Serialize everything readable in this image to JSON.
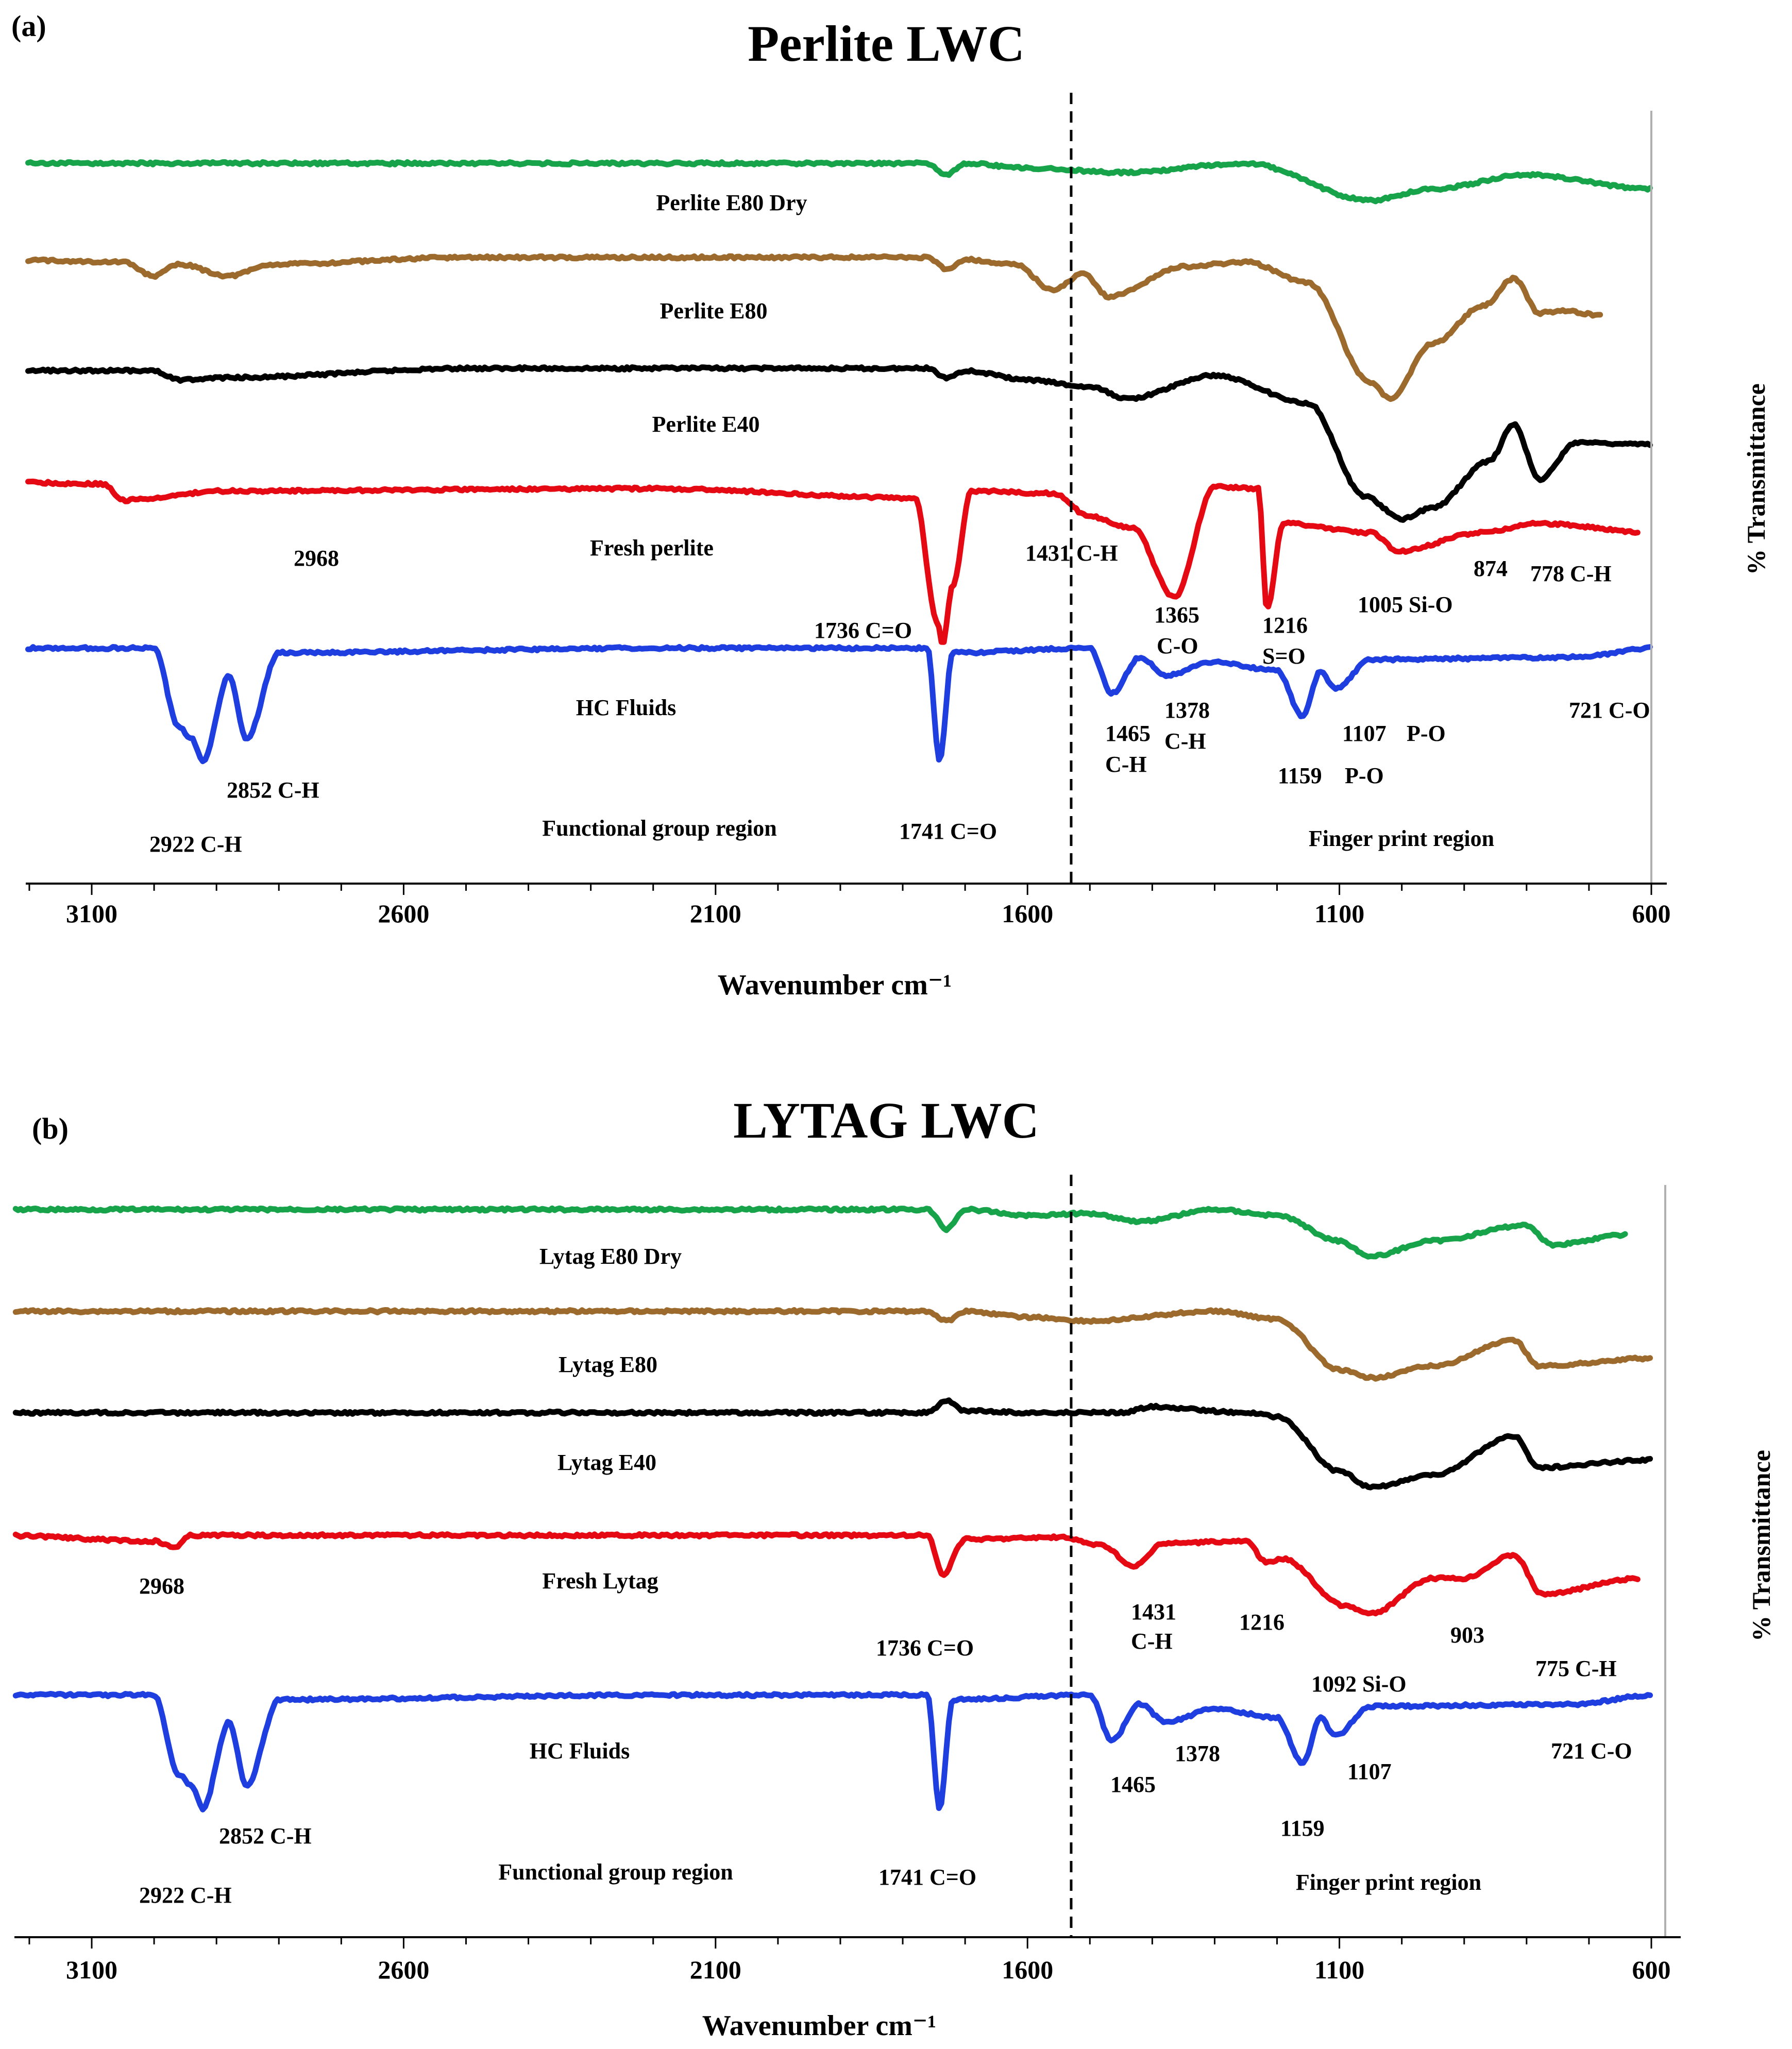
{
  "chart_data": [
    {
      "type": "line",
      "panel_label": "(a)",
      "title": "Perlite LWC",
      "xlabel": "Wavenumber cm⁻¹",
      "ylabel": "% Transmittance",
      "xlim": [
        3250,
        600
      ],
      "x_reversed": true,
      "xticks": [
        "3100",
        "2600",
        "2100",
        "1600",
        "1100",
        "600"
      ],
      "xtick_values": [
        3100,
        2600,
        2100,
        1600,
        1100,
        600
      ],
      "divider_wavenumber": 1530,
      "region_labels": [
        "Functional group region",
        "Finger print region"
      ],
      "series": [
        {
          "name": "Perlite E80 Dry",
          "color": "#17a34a",
          "x_end": 600,
          "points": [
            [
              3250,
              0.02
            ],
            [
              1760,
              0.02
            ],
            [
              1730,
              0.07
            ],
            [
              1700,
              0.02
            ],
            [
              1600,
              0.04
            ],
            [
              1450,
              0.06
            ],
            [
              1250,
              0.02
            ],
            [
              1050,
              0.18
            ],
            [
              950,
              0.13
            ],
            [
              800,
              0.07
            ],
            [
              600,
              0.13
            ]
          ]
        },
        {
          "name": "Perlite E80",
          "color": "#9c6a2c",
          "x_end": 680,
          "points": [
            [
              3250,
              0.02
            ],
            [
              3050,
              0.03
            ],
            [
              3000,
              0.09
            ],
            [
              2960,
              0.04
            ],
            [
              2880,
              0.09
            ],
            [
              2810,
              0.04
            ],
            [
              2500,
              0.01
            ],
            [
              1760,
              0.01
            ],
            [
              1730,
              0.06
            ],
            [
              1700,
              0.02
            ],
            [
              1620,
              0.04
            ],
            [
              1560,
              0.15
            ],
            [
              1510,
              0.08
            ],
            [
              1470,
              0.18
            ],
            [
              1350,
              0.05
            ],
            [
              1250,
              0.03
            ],
            [
              1150,
              0.12
            ],
            [
              1050,
              0.55
            ],
            [
              1020,
              0.62
            ],
            [
              950,
              0.38
            ],
            [
              870,
              0.22
            ],
            [
              820,
              0.1
            ],
            [
              780,
              0.25
            ],
            [
              740,
              0.24
            ],
            [
              680,
              0.26
            ]
          ]
        },
        {
          "name": "Perlite E40",
          "color": "#000000",
          "x_end": 600,
          "points": [
            [
              3250,
              0.01
            ],
            [
              3000,
              0.01
            ],
            [
              2960,
              0.05
            ],
            [
              2880,
              0.04
            ],
            [
              2500,
              0.0
            ],
            [
              1760,
              0.0
            ],
            [
              1730,
              0.04
            ],
            [
              1700,
              0.01
            ],
            [
              1600,
              0.05
            ],
            [
              1500,
              0.08
            ],
            [
              1440,
              0.13
            ],
            [
              1300,
              0.03
            ],
            [
              1150,
              0.15
            ],
            [
              1060,
              0.55
            ],
            [
              1000,
              0.65
            ],
            [
              950,
              0.6
            ],
            [
              860,
              0.4
            ],
            [
              820,
              0.24
            ],
            [
              780,
              0.48
            ],
            [
              720,
              0.32
            ],
            [
              600,
              0.33
            ]
          ]
        },
        {
          "name": "Fresh perlite",
          "color": "#e50914",
          "x_end": 620,
          "points": [
            [
              3250,
              0.0
            ],
            [
              3080,
              0.01
            ],
            [
              3050,
              0.08
            ],
            [
              3000,
              0.07
            ],
            [
              2900,
              0.04
            ],
            [
              2200,
              0.03
            ],
            [
              1780,
              0.07
            ],
            [
              1745,
              0.6
            ],
            [
              1736,
              0.7
            ],
            [
              1720,
              0.45
            ],
            [
              1690,
              0.04
            ],
            [
              1560,
              0.05
            ],
            [
              1500,
              0.15
            ],
            [
              1431,
              0.2
            ],
            [
              1365,
              0.5
            ],
            [
              1300,
              0.02
            ],
            [
              1230,
              0.03
            ],
            [
              1216,
              0.55
            ],
            [
              1190,
              0.18
            ],
            [
              1050,
              0.22
            ],
            [
              1005,
              0.3
            ],
            [
              874,
              0.22
            ],
            [
              778,
              0.18
            ],
            [
              600,
              0.22
            ]
          ]
        },
        {
          "name": "HC Fluids",
          "color": "#1f3ee0",
          "x_end": 600,
          "points": [
            [
              3250,
              0.0
            ],
            [
              3000,
              0.0
            ],
            [
              2960,
              0.35
            ],
            [
              2940,
              0.4
            ],
            [
              2922,
              0.5
            ],
            [
              2880,
              0.12
            ],
            [
              2852,
              0.4
            ],
            [
              2800,
              0.02
            ],
            [
              2200,
              0.0
            ],
            [
              1760,
              0.0
            ],
            [
              1741,
              0.5
            ],
            [
              1720,
              0.02
            ],
            [
              1500,
              0.0
            ],
            [
              1465,
              0.2
            ],
            [
              1420,
              0.04
            ],
            [
              1378,
              0.12
            ],
            [
              1300,
              0.06
            ],
            [
              1200,
              0.1
            ],
            [
              1159,
              0.3
            ],
            [
              1130,
              0.1
            ],
            [
              1107,
              0.18
            ],
            [
              1050,
              0.05
            ],
            [
              721,
              0.04
            ],
            [
              600,
              0.0
            ]
          ]
        }
      ],
      "annotations": [
        "2968",
        "1736 C=O",
        "1431 C-H",
        "1365",
        "C-O",
        "1216",
        "S=O",
        "1005 Si-O",
        "874",
        "778 C-H",
        "2922 C-H",
        "2852 C-H",
        "1741 C=O",
        "1465",
        "C-H",
        "1378",
        "C-H",
        "1159",
        "P-O",
        "1107",
        "P-O",
        "721 C-O"
      ]
    },
    {
      "type": "line",
      "panel_label": "(b)",
      "title": "LYTAG LWC",
      "xlabel": "Wavenumber cm⁻¹",
      "ylabel": "% Transmittance",
      "xlim": [
        3250,
        600
      ],
      "x_reversed": true,
      "xticks": [
        "3100",
        "2600",
        "2100",
        "1600",
        "1100",
        "600"
      ],
      "xtick_values": [
        3100,
        2600,
        2100,
        1600,
        1100,
        600
      ],
      "divider_wavenumber": 1530,
      "region_labels": [
        "Functional group region",
        "Finger print region"
      ],
      "series": [
        {
          "name": "Lytag E80 Dry",
          "color": "#17a34a",
          "x_end": 640,
          "points": [
            [
              3250,
              0.02
            ],
            [
              1760,
              0.02
            ],
            [
              1730,
              0.12
            ],
            [
              1700,
              0.02
            ],
            [
              1600,
              0.05
            ],
            [
              1500,
              0.04
            ],
            [
              1420,
              0.08
            ],
            [
              1300,
              0.02
            ],
            [
              1200,
              0.05
            ],
            [
              1100,
              0.18
            ],
            [
              1050,
              0.26
            ],
            [
              950,
              0.18
            ],
            [
              800,
              0.1
            ],
            [
              760,
              0.2
            ],
            [
              640,
              0.15
            ]
          ]
        },
        {
          "name": "Lytag E80",
          "color": "#9c6a2c",
          "x_end": 600,
          "points": [
            [
              3250,
              0.0
            ],
            [
              1760,
              0.0
            ],
            [
              1730,
              0.05
            ],
            [
              1700,
              0.0
            ],
            [
              1600,
              0.03
            ],
            [
              1500,
              0.05
            ],
            [
              1300,
              0.0
            ],
            [
              1200,
              0.04
            ],
            [
              1100,
              0.3
            ],
            [
              1050,
              0.34
            ],
            [
              950,
              0.28
            ],
            [
              820,
              0.15
            ],
            [
              780,
              0.28
            ],
            [
              600,
              0.24
            ]
          ]
        },
        {
          "name": "Lytag E40",
          "color": "#000000",
          "x_end": 600,
          "points": [
            [
              3250,
              0.0
            ],
            [
              1760,
              0.0
            ],
            [
              1730,
              -0.06
            ],
            [
              1700,
              -0.01
            ],
            [
              1600,
              0.0
            ],
            [
              1450,
              0.0
            ],
            [
              1400,
              -0.03
            ],
            [
              1250,
              0.0
            ],
            [
              1200,
              0.02
            ],
            [
              1100,
              0.3
            ],
            [
              1050,
              0.38
            ],
            [
              950,
              0.32
            ],
            [
              820,
              0.12
            ],
            [
              780,
              0.28
            ],
            [
              600,
              0.24
            ]
          ]
        },
        {
          "name": "Fresh Lytag",
          "color": "#e50914",
          "x_end": 620,
          "points": [
            [
              3250,
              0.0
            ],
            [
              3000,
              0.03
            ],
            [
              2968,
              0.06
            ],
            [
              2940,
              0.0
            ],
            [
              1760,
              0.0
            ],
            [
              1736,
              0.2
            ],
            [
              1700,
              0.02
            ],
            [
              1550,
              0.01
            ],
            [
              1480,
              0.05
            ],
            [
              1431,
              0.16
            ],
            [
              1380,
              0.04
            ],
            [
              1250,
              0.03
            ],
            [
              1216,
              0.14
            ],
            [
              1190,
              0.12
            ],
            [
              1092,
              0.36
            ],
            [
              1050,
              0.4
            ],
            [
              950,
              0.22
            ],
            [
              903,
              0.22
            ],
            [
              820,
              0.1
            ],
            [
              775,
              0.3
            ],
            [
              620,
              0.22
            ]
          ]
        },
        {
          "name": "HC Fluids",
          "color": "#1f3ee0",
          "x_end": 600,
          "points": [
            [
              3250,
              0.0
            ],
            [
              3000,
              0.0
            ],
            [
              2960,
              0.35
            ],
            [
              2940,
              0.4
            ],
            [
              2922,
              0.5
            ],
            [
              2880,
              0.12
            ],
            [
              2852,
              0.4
            ],
            [
              2800,
              0.02
            ],
            [
              2200,
              0.0
            ],
            [
              1760,
              0.0
            ],
            [
              1741,
              0.5
            ],
            [
              1720,
              0.02
            ],
            [
              1500,
              0.0
            ],
            [
              1465,
              0.2
            ],
            [
              1420,
              0.04
            ],
            [
              1378,
              0.12
            ],
            [
              1300,
              0.06
            ],
            [
              1200,
              0.1
            ],
            [
              1159,
              0.3
            ],
            [
              1130,
              0.1
            ],
            [
              1107,
              0.18
            ],
            [
              1050,
              0.05
            ],
            [
              721,
              0.04
            ],
            [
              600,
              0.0
            ]
          ]
        }
      ],
      "annotations": [
        "2968",
        "1736 C=O",
        "1431",
        "C-H",
        "1216",
        "1092 Si-O",
        "903",
        "775 C-H",
        "2922 C-H",
        "2852 C-H",
        "1741 C=O",
        "1465",
        "1378",
        "1159",
        "1107",
        "721 C-O"
      ]
    }
  ]
}
